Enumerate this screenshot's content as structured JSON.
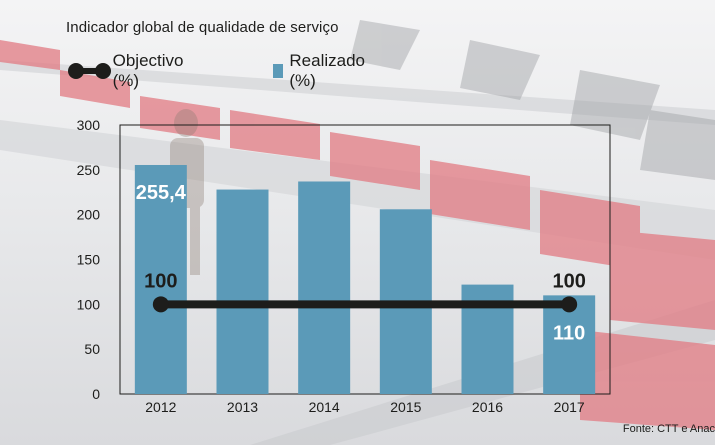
{
  "title": "Indicador global de qualidade de serviço",
  "legend": {
    "line_label": "Objectivo (%)",
    "bar_label": "Realizado (%)"
  },
  "source": "Fonte: CTT e Anac",
  "colors": {
    "bar": "#5b9ab8",
    "line": "#1d1d1b",
    "text": "#1d1d1b",
    "bar_label_text": "#ffffff"
  },
  "chart_data": {
    "type": "bar",
    "categories": [
      "2012",
      "2013",
      "2014",
      "2015",
      "2016",
      "2017"
    ],
    "series": [
      {
        "name": "Realizado (%)",
        "type": "bar",
        "values": [
          255.4,
          228,
          237,
          206,
          122,
          110
        ]
      },
      {
        "name": "Objectivo (%)",
        "type": "line",
        "values": [
          100,
          100,
          100,
          100,
          100,
          100
        ]
      }
    ],
    "data_labels": [
      {
        "series": "Realizado (%)",
        "category": "2012",
        "text": "255,4"
      },
      {
        "series": "Realizado (%)",
        "category": "2017",
        "text": "110"
      },
      {
        "series": "Objectivo (%)",
        "category": "2012",
        "text": "100"
      },
      {
        "series": "Objectivo (%)",
        "category": "2017",
        "text": "100"
      }
    ],
    "yticks": [
      0,
      50,
      100,
      150,
      200,
      250,
      300
    ],
    "ylim": [
      0,
      300
    ],
    "grid": false,
    "legend_position": "top-left"
  }
}
